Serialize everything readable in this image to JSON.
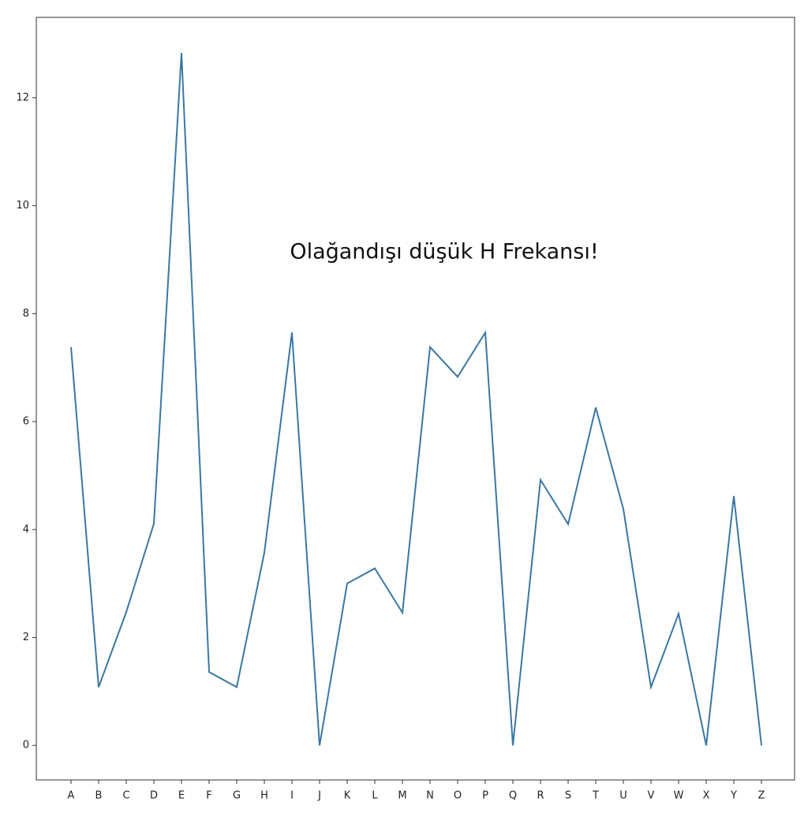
{
  "chart_data": {
    "type": "line",
    "categories": [
      "A",
      "B",
      "C",
      "D",
      "E",
      "F",
      "G",
      "H",
      "I",
      "J",
      "K",
      "L",
      "M",
      "N",
      "O",
      "P",
      "Q",
      "R",
      "S",
      "T",
      "U",
      "V",
      "W",
      "X",
      "Y",
      "Z"
    ],
    "series": [
      {
        "color": "#3a78a3",
        "values": [
          7.38,
          1.08,
          2.47,
          4.11,
          12.83,
          1.36,
          1.08,
          3.57,
          7.65,
          0,
          3.0,
          3.28,
          2.46,
          7.38,
          6.83,
          7.65,
          0,
          4.92,
          4.1,
          6.26,
          4.38,
          1.08,
          2.44,
          0,
          4.62,
          0
        ]
      }
    ],
    "ylim": [
      -0.64,
      13.49
    ],
    "yticks": [
      0,
      2,
      4,
      6,
      8,
      10,
      12
    ],
    "annotations": [
      {
        "text": "Olağandışı düşük H Frekansı!"
      }
    ]
  }
}
